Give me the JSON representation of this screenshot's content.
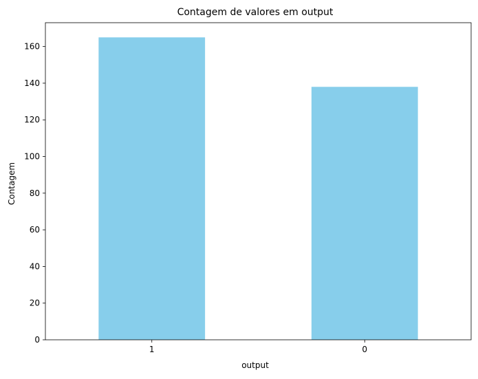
{
  "chart_data": {
    "type": "bar",
    "title": "Contagem de valores em output",
    "xlabel": "output",
    "ylabel": "Contagem",
    "categories": [
      "1",
      "0"
    ],
    "values": [
      165,
      138
    ],
    "ylim": [
      0,
      173
    ],
    "yticks": [
      0,
      20,
      40,
      60,
      80,
      100,
      120,
      140,
      160
    ],
    "grid": false,
    "legend": "none",
    "bar_color": "#87CEEB"
  }
}
